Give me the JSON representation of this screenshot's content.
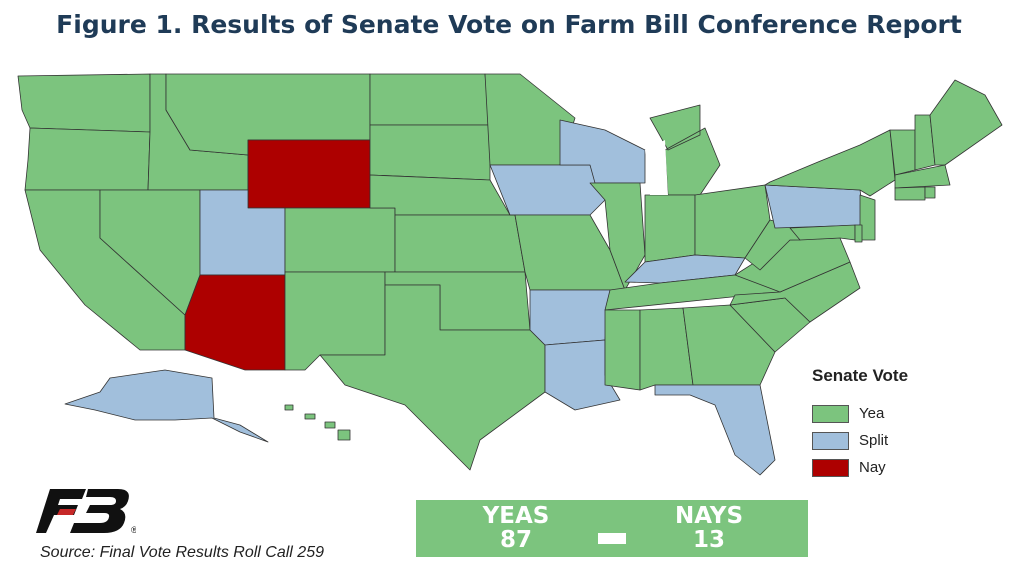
{
  "title": "Figure 1. Results of Senate Vote on Farm Bill Conference Report",
  "colors": {
    "yea": "#7cc47e",
    "split": "#a1bfdc",
    "nay": "#ad0000",
    "border": "#333333"
  },
  "legend": {
    "title": "Senate Vote",
    "items": [
      {
        "label": "Yea",
        "key": "yea"
      },
      {
        "label": "Split",
        "key": "split"
      },
      {
        "label": "Nay",
        "key": "nay"
      }
    ]
  },
  "tally": {
    "yeas_label": "YEAS",
    "yeas_value": "87",
    "nays_label": "NAYS",
    "nays_value": "13"
  },
  "source": "Source: Final Vote Results Roll Call 259",
  "logo": {
    "icon": "farm-bureau-logo",
    "mark": "®"
  },
  "state_votes": {
    "split": [
      "Utah",
      "Wisconsin",
      "Iowa",
      "Pennsylvania",
      "Kentucky",
      "Arkansas",
      "Louisiana",
      "Florida",
      "Alaska"
    ],
    "nay": [
      "Wyoming",
      "Arizona"
    ],
    "yea_note": "All other states"
  }
}
